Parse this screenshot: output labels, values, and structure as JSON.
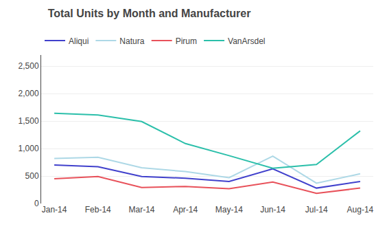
{
  "chart_data": {
    "type": "line",
    "title": "Total Units by Month and Manufacturer",
    "categories": [
      "Jan-14",
      "Feb-14",
      "Mar-14",
      "Apr-14",
      "May-14",
      "Jun-14",
      "Jul-14",
      "Aug-14"
    ],
    "series": [
      {
        "name": "Aliqui",
        "color": "#4040CC",
        "values": [
          700,
          670,
          490,
          460,
          400,
          630,
          280,
          400
        ]
      },
      {
        "name": "Natura",
        "color": "#ADD8E6",
        "values": [
          820,
          840,
          650,
          580,
          470,
          860,
          370,
          540
        ]
      },
      {
        "name": "Pirum",
        "color": "#E8515A",
        "values": [
          450,
          490,
          290,
          310,
          270,
          390,
          185,
          280
        ]
      },
      {
        "name": "VanArsdel",
        "color": "#2BBFAA",
        "values": [
          1640,
          1610,
          1490,
          1090,
          870,
          640,
          710,
          1320
        ]
      }
    ],
    "ylim": [
      0,
      2700
    ],
    "yticks": [
      0,
      500,
      {
        "value": 1000,
        "label": "1,000"
      },
      {
        "value": 1500,
        "label": "1,500"
      },
      {
        "value": 2000,
        "label": "2,000"
      },
      {
        "value": 2500,
        "label": "2,500"
      }
    ],
    "grid": true,
    "legend": "top left"
  }
}
